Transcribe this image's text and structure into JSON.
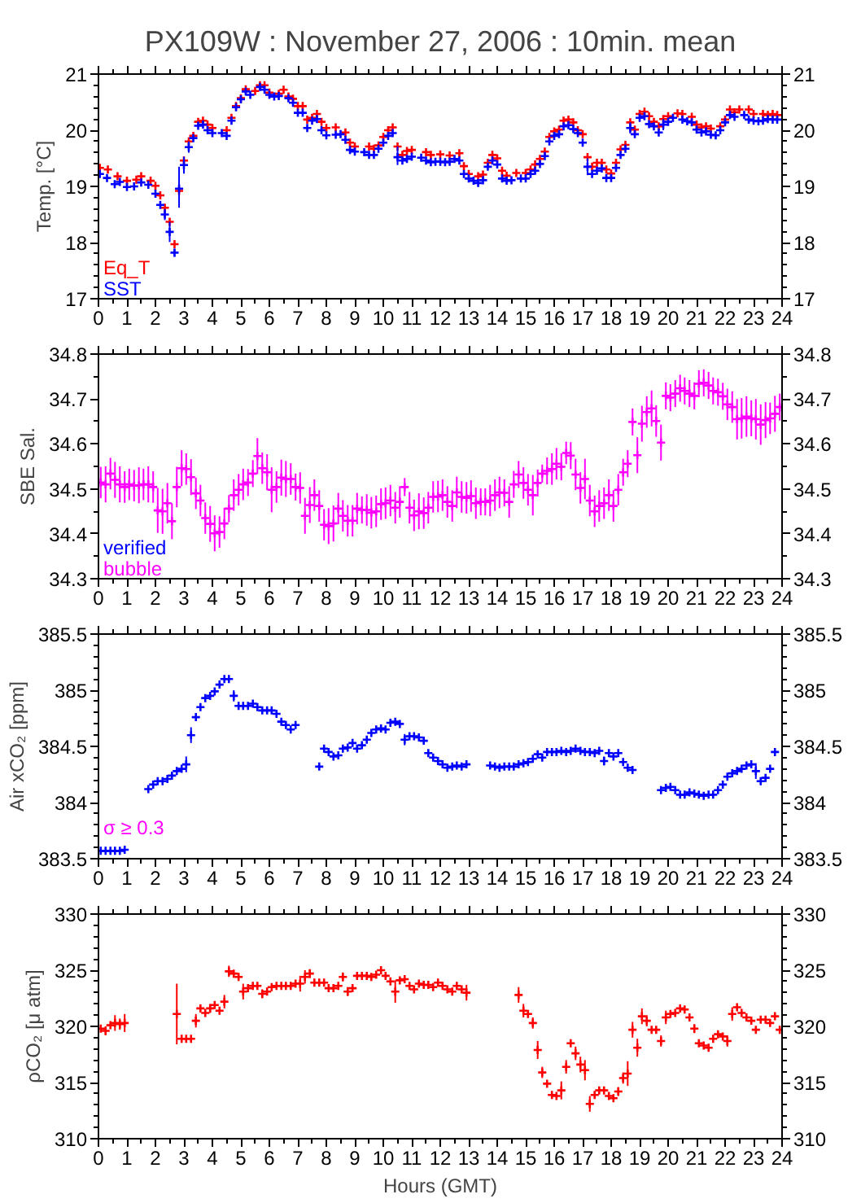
{
  "chart_data": [
    {
      "type": "scatter",
      "title": "PX109W : November 27, 2006 : 10min. mean",
      "ylabel": "Temp. [°C]",
      "xlim": [
        0,
        24
      ],
      "xticks": [
        0,
        1,
        2,
        3,
        4,
        5,
        6,
        7,
        8,
        9,
        10,
        11,
        12,
        13,
        14,
        15,
        16,
        17,
        18,
        19,
        20,
        21,
        22,
        23,
        24
      ],
      "ylim": [
        17,
        21
      ],
      "yticks": [
        17,
        18,
        19,
        20,
        21
      ],
      "y2lim": [
        17,
        21
      ],
      "y2ticks": [
        17,
        18,
        19,
        20,
        21
      ],
      "marker": "cross",
      "legend": "bottom left",
      "series": [
        {
          "name": "Eq_T",
          "color": "#ff0000",
          "x": [
            0.05,
            0.33,
            0.67,
            1.0,
            1.33,
            1.5,
            1.83,
            2.0,
            2.17,
            2.33,
            2.5,
            2.67,
            2.83,
            3.0,
            3.17,
            3.33,
            3.5,
            3.67,
            3.83,
            4.0,
            4.5,
            4.67,
            4.83,
            5.0,
            5.17,
            5.5,
            5.67,
            5.83,
            6.0,
            6.33,
            6.5,
            6.67,
            6.83,
            7.0,
            7.17,
            7.33,
            7.5,
            7.67,
            7.83,
            8.0,
            8.33,
            8.67,
            8.83,
            9.0,
            9.5,
            9.67,
            9.83,
            10.0,
            10.17,
            10.33,
            10.5,
            10.67,
            10.83,
            11.0,
            11.5,
            11.67,
            12.0,
            12.33,
            12.67,
            12.83,
            13.0,
            13.33,
            13.5,
            13.67,
            13.83,
            14.0,
            14.17,
            14.33,
            14.67,
            15.0,
            15.17,
            15.33,
            15.5,
            15.67,
            15.83,
            16.0,
            16.17,
            16.33,
            16.5,
            16.67,
            16.83,
            17.0,
            17.17,
            17.33,
            17.5,
            17.67,
            17.83,
            18.0,
            18.17,
            18.33,
            18.5,
            18.67,
            18.83,
            19.0,
            19.17,
            19.33,
            19.5,
            19.67,
            19.83,
            20.0,
            20.33,
            20.5,
            20.83,
            21.0,
            21.17,
            21.33,
            21.5,
            21.83,
            22.0,
            22.17,
            22.33,
            22.5,
            22.83,
            23.0,
            23.33,
            23.5,
            23.67,
            23.83
          ],
          "values": [
            19.33,
            19.3,
            19.18,
            19.1,
            19.12,
            19.18,
            19.1,
            19.01,
            18.84,
            18.62,
            18.37,
            17.97,
            18.92,
            19.46,
            19.8,
            19.9,
            20.15,
            20.17,
            20.1,
            20.04,
            20.0,
            20.22,
            20.43,
            20.57,
            20.73,
            20.7,
            20.8,
            20.8,
            20.67,
            20.65,
            20.72,
            20.6,
            20.56,
            20.43,
            20.43,
            20.19,
            20.22,
            20.29,
            20.15,
            20.04,
            20.05,
            19.96,
            19.78,
            19.71,
            19.71,
            19.67,
            19.73,
            19.88,
            20.0,
            20.05,
            19.71,
            19.56,
            19.63,
            19.65,
            19.61,
            19.56,
            19.57,
            19.55,
            19.59,
            19.36,
            19.22,
            19.18,
            19.21,
            19.42,
            19.56,
            19.5,
            19.28,
            19.19,
            19.24,
            19.24,
            19.3,
            19.39,
            19.49,
            19.62,
            19.88,
            19.98,
            20.01,
            20.17,
            20.19,
            20.14,
            20.0,
            19.93,
            19.52,
            19.35,
            19.42,
            19.42,
            19.3,
            19.23,
            19.42,
            19.66,
            19.74,
            20.14,
            20.01,
            20.29,
            20.33,
            20.25,
            20.15,
            20.07,
            20.2,
            20.25,
            20.3,
            20.29,
            20.24,
            20.1,
            20.05,
            20.07,
            20.03,
            20.07,
            20.19,
            20.37,
            20.32,
            20.37,
            20.37,
            20.29,
            20.29,
            20.27,
            20.29,
            20.27
          ]
        },
        {
          "name": "SST",
          "color": "#0000ff",
          "x": [
            0.05,
            0.3,
            0.57,
            0.75,
            1.0,
            1.25,
            1.5,
            1.75,
            2.0,
            2.17,
            2.33,
            2.5,
            2.67,
            2.83,
            3.0,
            3.17,
            3.33,
            3.5,
            3.67,
            3.83,
            4.0,
            4.33,
            4.5,
            4.67,
            4.83,
            5.0,
            5.17,
            5.33,
            5.67,
            5.83,
            6.0,
            6.17,
            6.33,
            6.67,
            6.83,
            7.0,
            7.17,
            7.33,
            7.5,
            7.67,
            7.83,
            8.0,
            8.33,
            8.5,
            8.67,
            8.83,
            9.0,
            9.33,
            9.5,
            9.67,
            9.83,
            10.0,
            10.17,
            10.33,
            10.5,
            10.67,
            10.83,
            11.0,
            11.33,
            11.5,
            11.67,
            11.83,
            12.0,
            12.17,
            12.33,
            12.5,
            12.67,
            12.83,
            13.0,
            13.17,
            13.33,
            13.5,
            13.67,
            13.83,
            14.0,
            14.17,
            14.33,
            14.5,
            14.83,
            15.0,
            15.17,
            15.33,
            15.5,
            15.67,
            15.83,
            16.0,
            16.17,
            16.33,
            16.5,
            16.67,
            16.83,
            17.0,
            17.17,
            17.33,
            17.5,
            17.67,
            17.83,
            18.0,
            18.17,
            18.33,
            18.5,
            18.67,
            18.83,
            19.0,
            19.17,
            19.33,
            19.5,
            19.67,
            19.83,
            20.0,
            20.17,
            20.5,
            20.67,
            20.83,
            21.0,
            21.17,
            21.33,
            21.5,
            21.67,
            21.83,
            22.0,
            22.17,
            22.33,
            22.67,
            22.83,
            23.0,
            23.17,
            23.33,
            23.5,
            23.67,
            23.83
          ],
          "values": [
            19.22,
            19.15,
            19.04,
            19.08,
            18.99,
            19.0,
            19.07,
            19.03,
            18.87,
            18.67,
            18.5,
            18.19,
            17.82,
            18.96,
            19.38,
            19.7,
            19.86,
            20.08,
            20.1,
            20.0,
            19.95,
            19.95,
            19.9,
            20.17,
            20.41,
            20.55,
            20.69,
            20.63,
            20.77,
            20.72,
            20.63,
            20.6,
            20.61,
            20.57,
            20.49,
            20.31,
            20.31,
            20.04,
            20.17,
            20.2,
            20.0,
            19.91,
            19.92,
            19.93,
            19.83,
            19.65,
            19.62,
            19.61,
            19.56,
            19.56,
            19.67,
            19.78,
            19.9,
            19.95,
            19.52,
            19.46,
            19.49,
            19.53,
            19.51,
            19.46,
            19.43,
            19.44,
            19.44,
            19.43,
            19.44,
            19.49,
            19.46,
            19.22,
            19.14,
            19.1,
            19.06,
            19.11,
            19.35,
            19.46,
            19.39,
            19.14,
            19.1,
            19.11,
            19.14,
            19.14,
            19.22,
            19.28,
            19.4,
            19.54,
            19.8,
            19.9,
            19.93,
            20.07,
            20.09,
            20.02,
            19.95,
            19.78,
            19.35,
            19.22,
            19.28,
            19.32,
            19.15,
            19.15,
            19.33,
            19.56,
            19.67,
            20.04,
            19.93,
            20.22,
            20.25,
            20.11,
            20.07,
            19.96,
            20.1,
            20.15,
            20.22,
            20.19,
            20.16,
            20.14,
            20.01,
            19.96,
            19.98,
            19.92,
            19.91,
            20.0,
            20.14,
            20.27,
            20.24,
            20.27,
            20.19,
            20.17,
            20.16,
            20.17,
            20.2,
            20.19,
            20.19
          ],
          "errors": [
            null,
            null,
            null,
            null,
            null,
            null,
            null,
            null,
            null,
            null,
            0.1,
            0.18,
            0.07,
            [
              18.62,
              19.35
            ],
            0.15,
            0.1,
            null,
            null,
            null,
            null,
            null,
            null,
            null,
            null,
            null,
            null,
            null,
            null,
            null,
            null,
            null,
            null,
            null,
            null,
            null,
            null,
            null,
            null,
            null,
            null,
            null,
            null,
            null,
            null,
            null,
            null,
            null,
            null,
            null,
            null,
            null,
            null,
            null,
            null,
            [
              19.38,
              19.71
            ],
            null,
            null,
            null,
            null,
            null,
            null,
            null,
            null,
            null,
            null,
            null,
            null,
            null,
            null,
            null,
            null,
            null,
            null,
            null,
            null,
            null,
            null,
            null,
            null,
            null,
            null,
            null,
            null,
            null,
            null,
            null,
            null,
            null,
            null,
            null,
            null,
            null,
            0.15,
            null,
            null,
            null,
            null,
            null,
            null,
            null,
            null,
            0.1,
            null,
            null,
            null,
            null,
            null,
            null,
            0.1,
            null,
            null,
            null,
            null,
            null,
            null,
            null,
            null,
            null,
            null,
            null,
            null,
            null,
            null,
            null,
            null,
            null,
            null,
            null,
            null,
            null,
            null
          ]
        }
      ]
    },
    {
      "type": "scatter",
      "ylabel": "SBE Sal.",
      "xlim": [
        0,
        24
      ],
      "xticks": [
        0,
        1,
        2,
        3,
        4,
        5,
        6,
        7,
        8,
        9,
        10,
        11,
        12,
        13,
        14,
        15,
        16,
        17,
        18,
        19,
        20,
        21,
        22,
        23,
        24
      ],
      "ylim": [
        34.3,
        34.8
      ],
      "yticks": [
        34.3,
        34.4,
        34.5,
        34.6,
        34.7,
        34.8
      ],
      "y2lim": [
        34.3,
        34.8
      ],
      "y2ticks": [
        34.3,
        34.4,
        34.5,
        34.6,
        34.7,
        34.8
      ],
      "marker": "cross",
      "legend": "bottom left",
      "series": [
        {
          "name": "verified",
          "color": "#0000ff"
        },
        {
          "name": "bubble",
          "color": "#ff00ff",
          "x": [
            0.08,
            0.25,
            0.42,
            0.58,
            0.75,
            0.92,
            1.08,
            1.25,
            1.42,
            1.58,
            1.75,
            1.92,
            2.08,
            2.25,
            2.42,
            2.58,
            2.75,
            2.92,
            3.08,
            3.25,
            3.42,
            3.58,
            3.75,
            3.92,
            4.08,
            4.25,
            4.42,
            4.58,
            4.75,
            4.92,
            5.08,
            5.25,
            5.42,
            5.58,
            5.75,
            5.92,
            6.08,
            6.25,
            6.42,
            6.58,
            6.75,
            6.92,
            7.08,
            7.25,
            7.42,
            7.58,
            7.75,
            7.92,
            8.08,
            8.25,
            8.42,
            8.58,
            8.75,
            8.92,
            9.08,
            9.25,
            9.42,
            9.58,
            9.75,
            9.92,
            10.08,
            10.25,
            10.42,
            10.58,
            10.75,
            10.92,
            11.08,
            11.25,
            11.42,
            11.58,
            11.75,
            11.92,
            12.08,
            12.25,
            12.42,
            12.58,
            12.75,
            12.92,
            13.08,
            13.25,
            13.42,
            13.58,
            13.75,
            13.92,
            14.08,
            14.25,
            14.42,
            14.58,
            14.75,
            14.92,
            15.08,
            15.25,
            15.42,
            15.58,
            15.75,
            15.92,
            16.08,
            16.25,
            16.42,
            16.58,
            16.75,
            16.92,
            17.08,
            17.25,
            17.42,
            17.58,
            17.75,
            17.92,
            18.08,
            18.25,
            18.42,
            18.58,
            18.75,
            18.92,
            19.08,
            19.25,
            19.42,
            19.58,
            19.75,
            19.92,
            20.08,
            20.25,
            20.42,
            20.58,
            20.75,
            20.92,
            21.08,
            21.25,
            21.42,
            21.58,
            21.75,
            21.92,
            22.08,
            22.25,
            22.42,
            22.58,
            22.75,
            22.92,
            23.08,
            23.25,
            23.42,
            23.58,
            23.75,
            23.92
          ],
          "values": [
            34.514,
            34.51,
            34.534,
            34.52,
            34.51,
            34.504,
            34.51,
            34.507,
            34.508,
            34.51,
            34.51,
            34.504,
            34.452,
            34.45,
            34.468,
            34.428,
            34.504,
            34.546,
            34.544,
            34.526,
            34.49,
            34.474,
            34.435,
            34.422,
            34.401,
            34.404,
            34.423,
            34.456,
            34.486,
            34.498,
            34.51,
            34.514,
            34.534,
            34.573,
            34.546,
            34.537,
            34.498,
            34.504,
            34.525,
            34.522,
            34.522,
            34.504,
            34.502,
            34.44,
            34.464,
            34.486,
            34.462,
            34.42,
            34.417,
            34.423,
            34.456,
            34.44,
            34.429,
            34.429,
            34.456,
            34.453,
            34.453,
            34.447,
            34.45,
            34.466,
            34.468,
            34.474,
            34.458,
            34.471,
            34.504,
            34.458,
            34.441,
            34.45,
            34.446,
            34.458,
            34.482,
            34.483,
            34.486,
            34.471,
            34.462,
            34.492,
            34.482,
            34.48,
            34.484,
            34.468,
            34.471,
            34.471,
            34.474,
            34.486,
            34.492,
            34.491,
            34.471,
            34.51,
            34.532,
            34.513,
            34.498,
            34.486,
            34.513,
            34.534,
            34.54,
            34.544,
            34.556,
            34.549,
            34.58,
            34.574,
            34.532,
            34.502,
            34.522,
            34.474,
            34.45,
            34.462,
            34.468,
            34.486,
            34.462,
            34.498,
            34.537,
            34.556,
            34.649,
            34.575,
            34.645,
            34.671,
            34.679,
            34.651,
            34.603,
            34.707,
            34.703,
            34.712,
            34.724,
            34.718,
            34.712,
            34.707,
            34.734,
            34.736,
            34.73,
            34.718,
            34.715,
            34.706,
            34.688,
            34.682,
            34.655,
            34.657,
            34.661,
            34.657,
            34.655,
            34.643,
            34.653,
            34.657,
            34.667,
            34.682
          ],
          "errors": [
            0.035,
            0.04,
            0.035,
            0.04,
            0.04,
            0.035,
            0.035,
            0.035,
            0.04,
            0.035,
            0.04,
            0.035,
            0.05,
            0.05,
            0.045,
            0.04,
            0.045,
            0.04,
            0.035,
            0.04,
            0.035,
            0.035,
            0.035,
            0.04,
            0.04,
            0.035,
            0.035,
            0.03,
            0.035,
            0.035,
            0.035,
            0.03,
            0.03,
            0.04,
            0.035,
            0.04,
            0.05,
            0.035,
            0.04,
            0.04,
            0.035,
            0.03,
            0.035,
            0.04,
            0.04,
            0.035,
            0.035,
            0.035,
            0.04,
            0.04,
            0.035,
            0.035,
            0.035,
            0.035,
            0.035,
            0.03,
            0.035,
            0.035,
            0.035,
            0.035,
            0.035,
            0.035,
            0.035,
            0.035,
            0.02,
            0.035,
            0.035,
            0.04,
            0.035,
            0.035,
            0.035,
            0.035,
            0.035,
            0.035,
            0.035,
            0.035,
            0.035,
            0.035,
            0.035,
            0.035,
            0.03,
            0.03,
            0.035,
            0.035,
            0.035,
            0.03,
            0.035,
            0.03,
            0.03,
            0.035,
            0.035,
            0.045,
            0.03,
            0.02,
            0.03,
            0.035,
            0.035,
            0.03,
            0.025,
            0.03,
            0.035,
            0.035,
            0.045,
            0.035,
            0.035,
            0.035,
            0.035,
            0.035,
            0.035,
            0.035,
            0.03,
            0.03,
            0.03,
            0.04,
            0.04,
            0.035,
            0.04,
            0.035,
            0.04,
            0.03,
            0.03,
            0.03,
            0.03,
            0.03,
            0.03,
            0.03,
            0.03,
            0.03,
            0.03,
            0.03,
            0.03,
            0.03,
            0.035,
            0.035,
            0.045,
            0.045,
            0.045,
            0.04,
            0.045,
            0.045,
            0.04,
            0.035,
            0.04,
            0.03
          ]
        }
      ]
    },
    {
      "type": "scatter",
      "ylabel": "Air xCO₂ [ppm]",
      "xlim": [
        0,
        24
      ],
      "xticks": [
        0,
        1,
        2,
        3,
        4,
        5,
        6,
        7,
        8,
        9,
        10,
        11,
        12,
        13,
        14,
        15,
        16,
        17,
        18,
        19,
        20,
        21,
        22,
        23,
        24
      ],
      "ylim": [
        383.5,
        385.5
      ],
      "yticks": [
        383.5,
        384,
        384.5,
        385,
        385.5
      ],
      "y2lim": [
        383.5,
        385.5
      ],
      "y2ticks": [
        383.5,
        384,
        384.5,
        385,
        385.5
      ],
      "marker": "cross",
      "series": [
        {
          "color": "#0000ff",
          "x": [
            0.08,
            0.25,
            0.42,
            0.58,
            0.75,
            0.92,
            1.75,
            1.92,
            2.08,
            2.25,
            2.42,
            2.58,
            2.75,
            2.92,
            3.08,
            3.25,
            3.42,
            3.58,
            3.75,
            3.92,
            4.08,
            4.25,
            4.42,
            4.58,
            4.75,
            4.92,
            5.08,
            5.25,
            5.42,
            5.58,
            5.75,
            5.92,
            6.08,
            6.25,
            6.42,
            6.58,
            6.75,
            6.92,
            7.75,
            7.92,
            8.08,
            8.25,
            8.42,
            8.58,
            8.75,
            8.92,
            9.08,
            9.25,
            9.42,
            9.58,
            9.75,
            9.92,
            10.08,
            10.25,
            10.42,
            10.58,
            10.75,
            10.92,
            11.08,
            11.25,
            11.42,
            11.58,
            11.75,
            11.92,
            12.08,
            12.25,
            12.42,
            12.58,
            12.75,
            12.92,
            13.75,
            13.92,
            14.08,
            14.25,
            14.42,
            14.58,
            14.75,
            14.92,
            15.08,
            15.25,
            15.42,
            15.58,
            15.75,
            15.92,
            16.08,
            16.25,
            16.42,
            16.58,
            16.75,
            16.92,
            17.08,
            17.25,
            17.42,
            17.58,
            17.75,
            17.92,
            18.08,
            18.25,
            18.42,
            18.58,
            18.75,
            19.75,
            19.92,
            20.08,
            20.25,
            20.42,
            20.58,
            20.75,
            20.92,
            21.08,
            21.25,
            21.42,
            21.58,
            21.75,
            21.92,
            22.08,
            22.25,
            22.42,
            22.58,
            22.75,
            22.92,
            23.08,
            23.25,
            23.42,
            23.58,
            23.75
          ],
          "values": [
            383.57,
            383.57,
            383.57,
            383.57,
            383.57,
            383.58,
            384.12,
            384.16,
            384.19,
            384.19,
            384.21,
            384.24,
            384.28,
            384.3,
            384.34,
            384.6,
            384.76,
            384.85,
            384.93,
            384.95,
            384.99,
            385.05,
            385.1,
            385.1,
            384.95,
            384.86,
            384.86,
            384.86,
            384.88,
            384.85,
            384.82,
            384.82,
            384.82,
            384.79,
            384.72,
            384.69,
            384.65,
            384.69,
            384.32,
            384.48,
            384.45,
            384.41,
            384.42,
            384.48,
            384.49,
            384.53,
            384.48,
            384.51,
            384.56,
            384.62,
            384.65,
            384.66,
            384.65,
            384.71,
            384.72,
            384.7,
            384.56,
            384.59,
            384.59,
            384.58,
            384.55,
            384.44,
            384.4,
            384.37,
            384.34,
            384.31,
            384.32,
            384.33,
            384.32,
            384.34,
            384.33,
            384.32,
            384.31,
            384.32,
            384.32,
            384.32,
            384.34,
            384.35,
            384.36,
            384.39,
            384.43,
            384.4,
            384.45,
            384.45,
            384.45,
            384.46,
            384.45,
            384.46,
            384.48,
            384.46,
            384.45,
            384.45,
            384.44,
            384.46,
            384.37,
            384.44,
            384.41,
            384.44,
            384.36,
            384.31,
            384.29,
            384.11,
            384.13,
            384.14,
            384.11,
            384.07,
            384.07,
            384.09,
            384.08,
            384.07,
            384.06,
            384.07,
            384.07,
            384.11,
            384.16,
            384.23,
            384.26,
            384.28,
            384.3,
            384.33,
            384.34,
            384.28,
            384.19,
            384.22,
            384.3,
            384.45
          ],
          "errors": [
            null,
            null,
            null,
            null,
            null,
            null,
            null,
            null,
            null,
            null,
            null,
            null,
            null,
            null,
            0.07,
            0.07,
            null,
            null,
            null,
            null,
            null,
            null,
            null,
            null,
            0.05,
            null,
            null,
            null,
            null,
            null,
            null,
            null,
            null,
            null,
            null,
            null,
            null,
            null,
            null,
            null,
            null,
            null,
            null,
            null,
            null,
            null,
            null,
            null,
            null,
            null,
            null,
            null,
            null,
            null,
            null,
            null,
            0.05,
            null,
            null,
            null,
            null,
            null,
            null,
            null,
            null,
            null,
            null,
            null,
            null,
            null,
            null,
            null,
            null,
            null,
            null,
            null,
            null,
            null,
            null,
            null,
            null,
            null,
            null,
            null,
            null,
            null,
            null,
            null,
            null,
            null,
            null,
            null,
            null,
            null,
            0.04,
            null,
            null,
            null,
            null,
            null,
            null,
            null,
            null,
            null,
            null,
            null,
            null,
            null,
            null,
            null,
            null,
            null,
            null,
            null,
            null,
            null,
            null,
            null,
            null,
            null,
            null,
            0.07,
            null,
            null,
            null,
            null
          ]
        },
        {
          "name": "σ ≥ 0.3",
          "color": "#ff00ff"
        }
      ]
    },
    {
      "type": "scatter",
      "ylabel": "ρCO₂ [μ atm]",
      "xlabel": "Hours (GMT)",
      "xlim": [
        0,
        24
      ],
      "xticks": [
        0,
        1,
        2,
        3,
        4,
        5,
        6,
        7,
        8,
        9,
        10,
        11,
        12,
        13,
        14,
        15,
        16,
        17,
        18,
        19,
        20,
        21,
        22,
        23,
        24
      ],
      "ylim": [
        310,
        330
      ],
      "yticks": [
        310,
        315,
        320,
        325,
        330
      ],
      "y2lim": [
        310,
        330
      ],
      "y2ticks": [
        310,
        315,
        320,
        325,
        330
      ],
      "marker": "cross",
      "series": [
        {
          "color": "#ff0000",
          "x": [
            0.08,
            0.25,
            0.42,
            0.58,
            0.75,
            0.92,
            2.75,
            2.92,
            3.08,
            3.25,
            3.42,
            3.58,
            3.75,
            3.92,
            4.08,
            4.25,
            4.42,
            4.58,
            4.75,
            4.92,
            5.08,
            5.25,
            5.42,
            5.58,
            5.75,
            5.92,
            6.08,
            6.25,
            6.42,
            6.58,
            6.75,
            6.92,
            7.08,
            7.25,
            7.42,
            7.58,
            7.75,
            7.92,
            8.08,
            8.25,
            8.42,
            8.58,
            8.75,
            8.92,
            9.08,
            9.25,
            9.42,
            9.58,
            9.75,
            9.92,
            10.08,
            10.25,
            10.42,
            10.58,
            10.75,
            10.92,
            11.08,
            11.25,
            11.42,
            11.58,
            11.75,
            11.92,
            12.08,
            12.25,
            12.42,
            12.58,
            12.75,
            12.92,
            14.75,
            14.92,
            15.08,
            15.25,
            15.42,
            15.58,
            15.75,
            15.92,
            16.08,
            16.25,
            16.42,
            16.58,
            16.75,
            16.92,
            17.08,
            17.25,
            17.42,
            17.58,
            17.75,
            17.92,
            18.08,
            18.25,
            18.42,
            18.58,
            18.75,
            18.92,
            19.08,
            19.25,
            19.42,
            19.58,
            19.75,
            19.92,
            20.08,
            20.25,
            20.42,
            20.58,
            20.75,
            20.92,
            21.08,
            21.25,
            21.42,
            21.58,
            21.75,
            21.92,
            22.08,
            22.25,
            22.42,
            22.58,
            22.75,
            22.92,
            23.08,
            23.25,
            23.42,
            23.58,
            23.75,
            23.92
          ],
          "values": [
            319.8,
            319.6,
            320.1,
            320.3,
            320.2,
            320.3,
            321.1,
            318.9,
            318.9,
            318.9,
            320.5,
            321.6,
            321.2,
            321.6,
            321.9,
            321.4,
            322.2,
            324.9,
            324.7,
            324.4,
            323.1,
            323.4,
            323.6,
            323.6,
            322.9,
            323.1,
            323.5,
            323.6,
            323.6,
            323.6,
            323.6,
            323.8,
            323.8,
            324.4,
            324.7,
            323.9,
            323.9,
            323.9,
            323.4,
            323.4,
            323.6,
            324.4,
            323.1,
            323.4,
            324.5,
            324.5,
            324.5,
            324.4,
            324.6,
            325.0,
            324.5,
            324.0,
            323.1,
            324.1,
            324.2,
            323.6,
            323.3,
            323.8,
            323.7,
            323.7,
            323.5,
            323.9,
            323.6,
            323.3,
            323.1,
            323.6,
            323.3,
            323.0,
            322.8,
            321.4,
            321.1,
            320.3,
            317.9,
            315.9,
            314.9,
            313.9,
            313.8,
            314.3,
            316.4,
            318.5,
            317.6,
            316.6,
            316.1,
            313.1,
            313.9,
            314.3,
            314.3,
            313.8,
            313.6,
            314.2,
            315.4,
            315.8,
            319.7,
            318.1,
            320.9,
            320.5,
            319.7,
            319.7,
            318.7,
            320.8,
            321.1,
            321.2,
            321.6,
            321.5,
            320.8,
            319.8,
            318.5,
            318.3,
            318.1,
            318.9,
            319.3,
            319.1,
            318.7,
            321.1,
            321.7,
            321.2,
            320.8,
            320.5,
            319.7,
            320.6,
            320.6,
            320.3,
            320.9,
            319.7
          ],
          "errors": [
            null,
            0.4,
            null,
            0.7,
            0.5,
            0.8,
            [
              318.4,
              323.8
            ],
            null,
            null,
            null,
            0.6,
            null,
            null,
            0.4,
            null,
            null,
            0.6,
            0.5,
            null,
            null,
            0.7,
            null,
            null,
            null,
            0.4,
            null,
            null,
            null,
            null,
            null,
            null,
            null,
            0.7,
            0.6,
            0.4,
            null,
            null,
            null,
            null,
            null,
            null,
            0.4,
            0.4,
            null,
            null,
            null,
            null,
            null,
            null,
            null,
            null,
            null,
            1.0,
            null,
            null,
            null,
            null,
            null,
            null,
            null,
            null,
            null,
            null,
            null,
            null,
            null,
            null,
            0.7,
            0.7,
            0.6,
            null,
            0.5,
            0.8,
            0.5,
            null,
            null,
            null,
            0.8,
            0.6,
            null,
            0.6,
            0.7,
            0.9,
            0.7,
            null,
            null,
            null,
            null,
            null,
            0.4,
            0.5,
            1.1,
            0.7,
            0.8,
            0.7,
            0.5,
            null,
            null,
            0.5,
            0.6,
            null,
            null,
            null,
            null,
            null,
            0.4,
            null,
            null,
            null,
            null,
            null,
            null,
            0.5,
            0.6,
            null,
            null,
            null,
            null,
            null,
            null,
            null,
            null,
            null,
            null
          ]
        }
      ]
    }
  ]
}
